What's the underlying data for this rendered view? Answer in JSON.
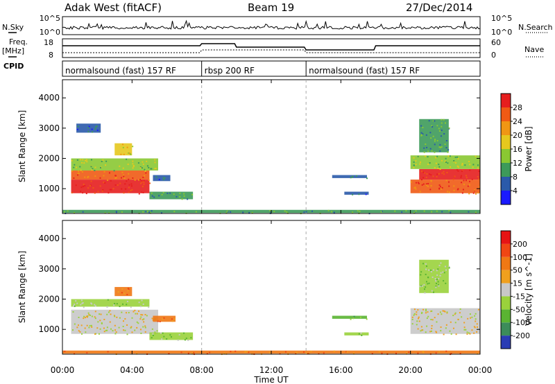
{
  "header": {
    "station": "Adak West (fitACF)",
    "beam": "Beam 19",
    "date": "27/Dec/2014"
  },
  "left_labels": {
    "nsky": "N.Sky",
    "freq": "Freq.",
    "mhz": "[MHz]",
    "cpid": "CPID"
  },
  "right_labels": {
    "nsearch": "N.Search",
    "nave": "Nave"
  },
  "nsky_axis": {
    "top": "10^5",
    "bottom": "10^0"
  },
  "nsearch_axis": {
    "top": "10^5",
    "bottom": "10^0"
  },
  "freq_axis": {
    "top": "18",
    "bottom": "8"
  },
  "nave_axis": {
    "top": "60",
    "bottom": "0"
  },
  "cpid_segments": [
    {
      "label": "normalsound (fast) 157 RF",
      "start_hour": 0,
      "end_hour": 8
    },
    {
      "label": "rbsp 200 RF",
      "start_hour": 8,
      "end_hour": 14
    },
    {
      "label": "normalsound (fast) 157 RF",
      "start_hour": 14,
      "end_hour": 24
    }
  ],
  "x_axis": {
    "title": "Time UT",
    "ticks": [
      "00:00",
      "04:00",
      "08:00",
      "12:00",
      "16:00",
      "20:00",
      "00:00"
    ],
    "range_hours": [
      0,
      24
    ]
  },
  "power_panel": {
    "ylabel": "Slant Range [km]",
    "yticks": [
      "1000",
      "2000",
      "3000",
      "4000"
    ],
    "colorbar_title": "Power [dB]",
    "colorbar_ticks": [
      "4",
      "8",
      "12",
      "16",
      "20",
      "24",
      "28"
    ],
    "colors": [
      "#1a1aff",
      "#2a5aaa",
      "#3d9a5a",
      "#8ac832",
      "#e6c81e",
      "#f09614",
      "#f05a14",
      "#e61e1e"
    ]
  },
  "velocity_panel": {
    "ylabel": "Slant Range [km]",
    "yticks": [
      "1000",
      "2000",
      "3000",
      "4000"
    ],
    "colorbar_title": "Velocity [m s^-1]",
    "colorbar_ticks": [
      "200",
      "100",
      "50",
      "15",
      "-15",
      "-50",
      "-100",
      "-200"
    ],
    "colors": [
      "#2a3cb4",
      "#3c8c5a",
      "#5ab432",
      "#9ad23c",
      "#c8c8c8",
      "#f0a01e",
      "#f07814",
      "#f04614",
      "#e61414"
    ]
  },
  "chart_data": {
    "type": "heatmap",
    "x_range_hours": [
      0,
      24
    ],
    "y_range_km": [
      180,
      4600
    ],
    "power_regions": [
      {
        "t0": 0.5,
        "t1": 5.0,
        "r0": 850,
        "r1": 1300,
        "level": 7
      },
      {
        "t0": 0.5,
        "t1": 5.0,
        "r0": 1300,
        "r1": 1600,
        "level": 6
      },
      {
        "t0": 0.5,
        "t1": 5.5,
        "r0": 1600,
        "r1": 2000,
        "level": 3
      },
      {
        "t0": 3.0,
        "t1": 4.0,
        "r0": 2100,
        "r1": 2500,
        "level": 4
      },
      {
        "t0": 0.8,
        "t1": 2.2,
        "r0": 2850,
        "r1": 3150,
        "level": 1
      },
      {
        "t0": 5.2,
        "t1": 6.2,
        "r0": 1250,
        "r1": 1450,
        "level": 1
      },
      {
        "t0": 5.0,
        "t1": 7.5,
        "r0": 650,
        "r1": 900,
        "level": 2
      },
      {
        "t0": 15.5,
        "t1": 17.5,
        "r0": 1350,
        "r1": 1450,
        "level": 1
      },
      {
        "t0": 16.2,
        "t1": 17.6,
        "r0": 800,
        "r1": 900,
        "level": 1
      },
      {
        "t0": 20.0,
        "t1": 24.0,
        "r0": 850,
        "r1": 1300,
        "level": 6
      },
      {
        "t0": 20.5,
        "t1": 24.0,
        "r0": 1300,
        "r1": 1650,
        "level": 7
      },
      {
        "t0": 20.0,
        "t1": 24.0,
        "r0": 1650,
        "r1": 2100,
        "level": 3
      },
      {
        "t0": 20.5,
        "t1": 22.2,
        "r0": 2200,
        "r1": 3300,
        "level": 2
      },
      {
        "t0": 0.0,
        "t1": 24.0,
        "r0": 200,
        "r1": 300,
        "level": 2
      }
    ],
    "velocity_regions": [
      {
        "t0": 0.5,
        "t1": 5.5,
        "r0": 850,
        "r1": 1650,
        "level": 4
      },
      {
        "t0": 0.5,
        "t1": 5.0,
        "r0": 1750,
        "r1": 2000,
        "level": 3
      },
      {
        "t0": 3.0,
        "t1": 4.0,
        "r0": 2100,
        "r1": 2400,
        "level": 6
      },
      {
        "t0": 5.0,
        "t1": 7.5,
        "r0": 650,
        "r1": 900,
        "level": 3
      },
      {
        "t0": 5.2,
        "t1": 6.5,
        "r0": 1250,
        "r1": 1450,
        "level": 6
      },
      {
        "t0": 15.5,
        "t1": 17.5,
        "r0": 1350,
        "r1": 1450,
        "level": 2
      },
      {
        "t0": 16.2,
        "t1": 17.6,
        "r0": 800,
        "r1": 900,
        "level": 3
      },
      {
        "t0": 20.0,
        "t1": 24.0,
        "r0": 850,
        "r1": 1700,
        "level": 4
      },
      {
        "t0": 20.5,
        "t1": 22.2,
        "r0": 2200,
        "r1": 3300,
        "level": 3
      },
      {
        "t0": 0.0,
        "t1": 24.0,
        "r0": 200,
        "r1": 300,
        "level": 6
      }
    ]
  }
}
